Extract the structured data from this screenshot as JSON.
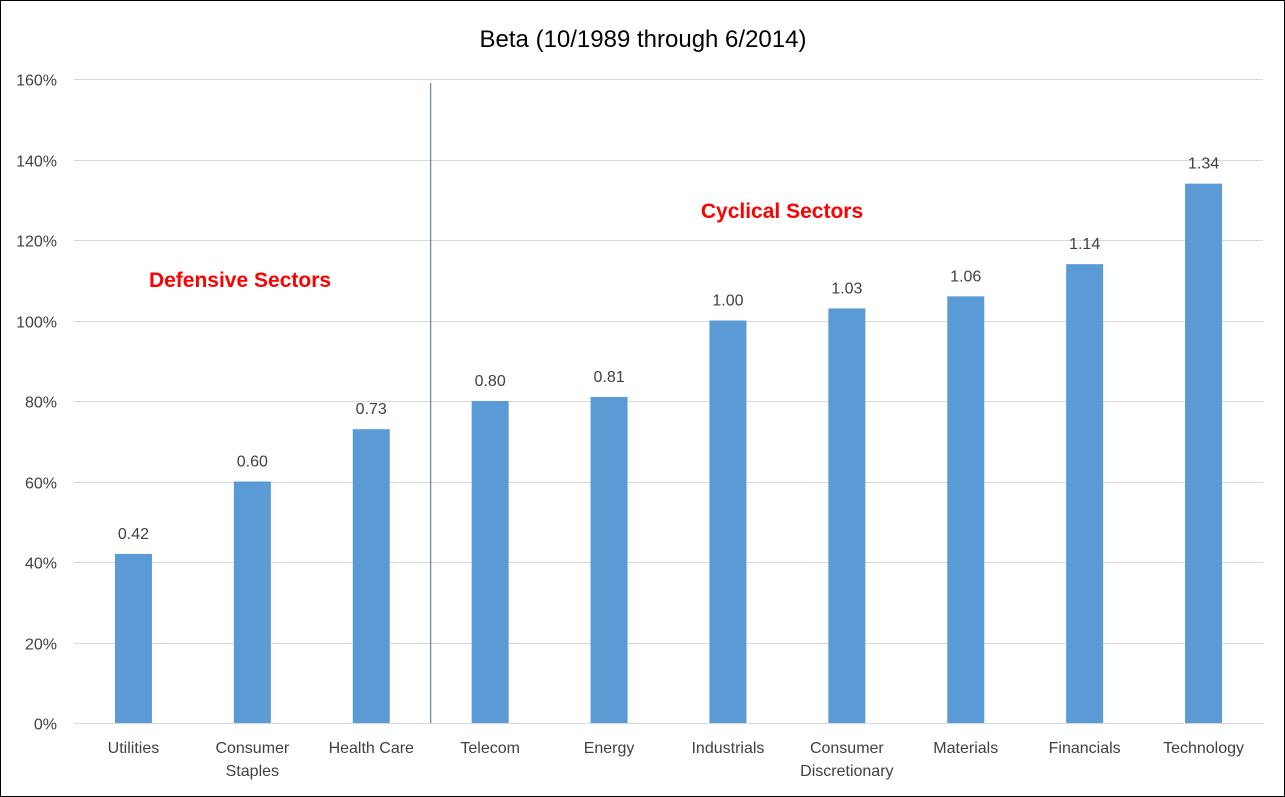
{
  "chart_data": {
    "type": "bar",
    "title": "Beta (10/1989 through 6/2014)",
    "xlabel": "",
    "ylabel": "",
    "categories": [
      [
        "Utilities"
      ],
      [
        "Consumer",
        "Staples"
      ],
      [
        "Health Care"
      ],
      [
        "Telecom"
      ],
      [
        "Energy"
      ],
      [
        "Industrials"
      ],
      [
        "Consumer",
        "Discretionary"
      ],
      [
        "Materials"
      ],
      [
        "Financials"
      ],
      [
        "Technology"
      ]
    ],
    "values": [
      0.42,
      0.6,
      0.73,
      0.8,
      0.81,
      1.0,
      1.03,
      1.06,
      1.14,
      1.34
    ],
    "data_labels": [
      "0.42",
      "0.60",
      "0.73",
      "0.80",
      "0.81",
      "1.00",
      "1.03",
      "1.06",
      "1.14",
      "1.34"
    ],
    "ylim": [
      0,
      1.6
    ],
    "yticks": [
      0,
      0.2,
      0.4,
      0.6,
      0.8,
      1.0,
      1.2,
      1.4,
      1.6
    ],
    "ytick_labels": [
      "0%",
      "20%",
      "40%",
      "60%",
      "80%",
      "100%",
      "120%",
      "140%",
      "160%"
    ],
    "grid": true,
    "legend": "none",
    "bar_color": "#5b9bd5",
    "annotations": [
      {
        "text": "Defensive Sectors",
        "color": "#ff0000"
      },
      {
        "text": "Cyclical Sectors",
        "color": "#ff0000"
      }
    ],
    "divider": {
      "between_categories": [
        "Health Care",
        "Telecom"
      ],
      "color": "#41719c"
    }
  }
}
